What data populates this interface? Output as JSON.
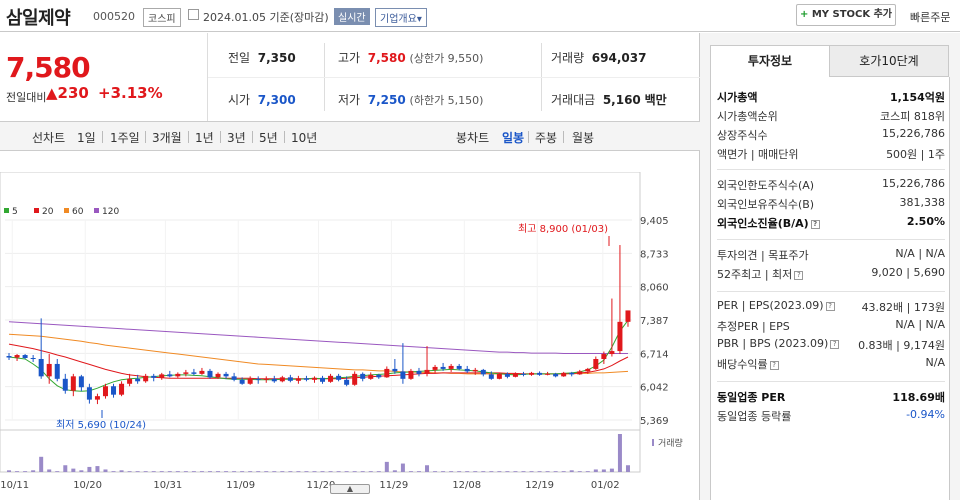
{
  "header": {
    "name": "삼일제약",
    "code": "000520",
    "market": "코스피",
    "date": "2024.01.05 기준(장마감)",
    "realtime": "실시간",
    "company": "기업개요",
    "company_arrow": "▾",
    "mystock_plus": "+",
    "mystock": "MY STOCK 추가",
    "quick": "빠른주문"
  },
  "price": {
    "current": "7,580",
    "label": "전일대비",
    "change": "▲230",
    "pct": "+3.13%"
  },
  "summary": {
    "prev_label": "전일",
    "prev": "7,350",
    "high_label": "고가",
    "high": "7,580",
    "high_limit": "(상한가 9,550)",
    "vol_label": "거래량",
    "vol": "694,037",
    "open_label": "시가",
    "open": "7,300",
    "low_label": "저가",
    "low": "7,250",
    "low_limit": "(하한가 5,150)",
    "amt_label": "거래대금",
    "amt": "5,160",
    "amt_unit": "백만"
  },
  "tabs": {
    "line": "선차트",
    "d1": "1일",
    "w1": "1주일",
    "m3": "3개월",
    "y1": "1년",
    "y3": "3년",
    "y5": "5년",
    "y10": "10년",
    "candle": "봉차트",
    "daily": "일봉",
    "weekly": "주봉",
    "monthly": "월봉"
  },
  "chart_data": {
    "type": "candlestick",
    "legend": [
      "5",
      "20",
      "60",
      "120"
    ],
    "colors": {
      "up": "#e0181c",
      "down": "#1a56c8",
      "ma5": "#32a832",
      "ma20": "#e0181c",
      "ma60": "#f08a24",
      "ma120": "#9a58c0"
    },
    "ylim": [
      5369,
      9405
    ],
    "yticks": [
      "9,405",
      "8,733",
      "8,060",
      "7,387",
      "6,714",
      "6,042",
      "5,369"
    ],
    "xticks": [
      "10/11",
      "10/20",
      "10/31",
      "11/09",
      "11/20",
      "11/29",
      "12/08",
      "12/19",
      "01/02"
    ],
    "high_note": "최고 8,900 (01/03)",
    "low_note": "최저 5,690 (10/24)",
    "volume_label": "거래량",
    "candles": [
      [
        6660,
        6720,
        6580,
        6630
      ],
      [
        6630,
        6700,
        6560,
        6680
      ],
      [
        6680,
        6700,
        6600,
        6620
      ],
      [
        6620,
        6680,
        6540,
        6600
      ],
      [
        6600,
        7420,
        6200,
        6250
      ],
      [
        6250,
        6700,
        6100,
        6500
      ],
      [
        6500,
        6600,
        6150,
        6200
      ],
      [
        6200,
        6300,
        5900,
        5960
      ],
      [
        5960,
        6300,
        5850,
        6250
      ],
      [
        6250,
        6280,
        5950,
        6030
      ],
      [
        6030,
        6100,
        5700,
        5780
      ],
      [
        5780,
        5900,
        5690,
        5850
      ],
      [
        5850,
        6100,
        5800,
        6050
      ],
      [
        6050,
        6100,
        5820,
        5880
      ],
      [
        5880,
        6150,
        5850,
        6100
      ],
      [
        6100,
        6300,
        6050,
        6200
      ],
      [
        6200,
        6280,
        6100,
        6150
      ],
      [
        6150,
        6300,
        6120,
        6260
      ],
      [
        6260,
        6300,
        6150,
        6220
      ],
      [
        6220,
        6320,
        6180,
        6290
      ],
      [
        6290,
        6360,
        6230,
        6250
      ],
      [
        6250,
        6330,
        6220,
        6300
      ],
      [
        6300,
        6380,
        6250,
        6330
      ],
      [
        6330,
        6400,
        6270,
        6300
      ],
      [
        6300,
        6420,
        6280,
        6360
      ],
      [
        6360,
        6400,
        6200,
        6230
      ],
      [
        6230,
        6330,
        6200,
        6300
      ],
      [
        6300,
        6340,
        6200,
        6250
      ],
      [
        6250,
        6320,
        6150,
        6180
      ],
      [
        6180,
        6230,
        6080,
        6100
      ],
      [
        6100,
        6250,
        6080,
        6200
      ],
      [
        6200,
        6250,
        6100,
        6180
      ],
      [
        6180,
        6250,
        6120,
        6200
      ],
      [
        6200,
        6260,
        6120,
        6150
      ],
      [
        6150,
        6260,
        6130,
        6230
      ],
      [
        6230,
        6280,
        6130,
        6160
      ],
      [
        6160,
        6260,
        6100,
        6210
      ],
      [
        6210,
        6260,
        6150,
        6180
      ],
      [
        6180,
        6250,
        6120,
        6220
      ],
      [
        6220,
        6260,
        6100,
        6140
      ],
      [
        6140,
        6300,
        6120,
        6260
      ],
      [
        6260,
        6300,
        6150,
        6180
      ],
      [
        6180,
        6250,
        6050,
        6080
      ],
      [
        6080,
        6350,
        6060,
        6300
      ],
      [
        6300,
        6330,
        6150,
        6200
      ],
      [
        6200,
        6330,
        6180,
        6280
      ],
      [
        6280,
        6300,
        6200,
        6230
      ],
      [
        6230,
        6450,
        6220,
        6400
      ],
      [
        6400,
        6600,
        6300,
        6350
      ],
      [
        6350,
        6920,
        6100,
        6200
      ],
      [
        6200,
        6400,
        6180,
        6360
      ],
      [
        6360,
        6420,
        6250,
        6300
      ],
      [
        6300,
        6860,
        6250,
        6380
      ],
      [
        6380,
        6480,
        6320,
        6440
      ],
      [
        6440,
        6520,
        6360,
        6400
      ],
      [
        6400,
        6500,
        6340,
        6460
      ],
      [
        6460,
        6500,
        6370,
        6400
      ],
      [
        6400,
        6460,
        6320,
        6350
      ],
      [
        6350,
        6420,
        6280,
        6380
      ],
      [
        6380,
        6400,
        6250,
        6290
      ],
      [
        6290,
        6350,
        6180,
        6200
      ],
      [
        6200,
        6320,
        6190,
        6300
      ],
      [
        6300,
        6330,
        6210,
        6240
      ],
      [
        6240,
        6330,
        6230,
        6300
      ],
      [
        6300,
        6340,
        6250,
        6280
      ],
      [
        6280,
        6340,
        6260,
        6320
      ],
      [
        6320,
        6350,
        6260,
        6280
      ],
      [
        6280,
        6340,
        6270,
        6300
      ],
      [
        6300,
        6320,
        6230,
        6250
      ],
      [
        6250,
        6340,
        6240,
        6320
      ],
      [
        6320,
        6340,
        6250,
        6290
      ],
      [
        6290,
        6380,
        6280,
        6350
      ],
      [
        6350,
        6420,
        6300,
        6400
      ],
      [
        6400,
        6650,
        6380,
        6600
      ],
      [
        6600,
        6750,
        6500,
        6700
      ],
      [
        6700,
        7820,
        6650,
        6760
      ],
      [
        6760,
        8900,
        6700,
        7350
      ],
      [
        7350,
        7580,
        7250,
        7580
      ]
    ],
    "ma5": [
      6640,
      6620,
      6600,
      6500,
      6380,
      6200,
      6060,
      5980,
      5960,
      5950,
      5960,
      6010,
      6080,
      6140,
      6180,
      6200,
      6210,
      6230,
      6240,
      6260,
      6270,
      6280,
      6280,
      6270,
      6260,
      6240,
      6220,
      6200,
      6190,
      6190,
      6190,
      6180,
      6180,
      6180,
      6190,
      6190,
      6190,
      6200,
      6210,
      6200,
      6210,
      6220,
      6230,
      6250,
      6260,
      6280,
      6290,
      6300,
      6320,
      6330,
      6340,
      6350,
      6360,
      6370,
      6380,
      6390,
      6380,
      6370,
      6360,
      6340,
      6320,
      6300,
      6290,
      6280,
      6290,
      6300,
      6300,
      6300,
      6300,
      6310,
      6320,
      6340,
      6380,
      6460,
      6580,
      6840,
      7160,
      7380
    ],
    "ma20": [
      6900,
      6870,
      6840,
      6810,
      6770,
      6730,
      6680,
      6640,
      6590,
      6540,
      6490,
      6440,
      6390,
      6350,
      6310,
      6280,
      6260,
      6240,
      6230,
      6220,
      6210,
      6210,
      6210,
      6210,
      6210,
      6210,
      6210,
      6210,
      6210,
      6210,
      6210,
      6200,
      6200,
      6200,
      6200,
      6200,
      6200,
      6200,
      6200,
      6200,
      6200,
      6200,
      6210,
      6220,
      6230,
      6240,
      6250,
      6260,
      6270,
      6280,
      6290,
      6300,
      6310,
      6310,
      6320,
      6320,
      6320,
      6320,
      6320,
      6320,
      6320,
      6320,
      6310,
      6310,
      6300,
      6300,
      6300,
      6300,
      6300,
      6300,
      6310,
      6320,
      6330,
      6360,
      6400,
      6470,
      6560,
      6640
    ],
    "ma60": [
      7100,
      7090,
      7080,
      7070,
      7060,
      7040,
      7020,
      7000,
      6980,
      6960,
      6930,
      6910,
      6880,
      6860,
      6840,
      6820,
      6800,
      6780,
      6760,
      6740,
      6720,
      6700,
      6680,
      6660,
      6640,
      6620,
      6600,
      6580,
      6560,
      6540,
      6520,
      6500,
      6490,
      6480,
      6470,
      6460,
      6450,
      6440,
      6430,
      6420,
      6410,
      6400,
      6390,
      6380,
      6380,
      6370,
      6360,
      6360,
      6350,
      6340,
      6340,
      6330,
      6330,
      6320,
      6320,
      6310,
      6310,
      6300,
      6300,
      6300,
      6300,
      6300,
      6300,
      6300,
      6300,
      6300,
      6300,
      6300,
      6300,
      6300,
      6300,
      6310,
      6310,
      6320,
      6320,
      6330,
      6340,
      6350
    ],
    "ma120": [
      7350,
      7340,
      7330,
      7320,
      7310,
      7300,
      7290,
      7280,
      7270,
      7260,
      7250,
      7240,
      7230,
      7220,
      7210,
      7200,
      7190,
      7180,
      7170,
      7160,
      7150,
      7140,
      7130,
      7120,
      7110,
      7100,
      7090,
      7080,
      7070,
      7060,
      7050,
      7040,
      7030,
      7020,
      7010,
      7000,
      6990,
      6980,
      6970,
      6960,
      6950,
      6940,
      6930,
      6920,
      6910,
      6900,
      6890,
      6880,
      6870,
      6860,
      6850,
      6840,
      6830,
      6820,
      6810,
      6800,
      6790,
      6780,
      6770,
      6760,
      6750,
      6740,
      6740,
      6730,
      6730,
      6720,
      6720,
      6720,
      6720,
      6710,
      6710,
      6710,
      6710,
      6710,
      6710,
      6710,
      6710,
      6710
    ],
    "volumes": [
      2,
      1,
      1,
      2,
      18,
      3,
      1,
      8,
      4,
      2,
      6,
      7,
      3,
      1,
      2,
      1,
      1,
      1,
      1,
      1,
      1,
      1,
      1,
      1,
      1,
      1,
      1,
      1,
      1,
      1,
      1,
      1,
      1,
      1,
      1,
      1,
      1,
      1,
      1,
      1,
      1,
      1,
      1,
      1,
      1,
      1,
      1,
      12,
      2,
      10,
      1,
      1,
      8,
      1,
      1,
      1,
      1,
      1,
      1,
      1,
      1,
      1,
      1,
      1,
      1,
      1,
      1,
      1,
      1,
      1,
      2,
      1,
      1,
      3,
      3,
      4,
      45,
      8
    ]
  },
  "right": {
    "tab1": "투자정보",
    "tab2": "호가10단계",
    "rows": [
      {
        "k": "시가총액",
        "v": "1,154억원"
      },
      {
        "k": "시가총액순위",
        "v": "코스피 818위"
      },
      {
        "k": "상장주식수",
        "v": "15,226,786"
      },
      {
        "k": "액면가 | 매매단위",
        "v": "500원 | 1주"
      },
      {
        "k": "외국인한도주식수(A)",
        "v": "15,226,786"
      },
      {
        "k": "외국인보유주식수(B)",
        "v": "381,338"
      },
      {
        "k": "외국인소진율(B/A)",
        "v": "2.50%"
      },
      {
        "k": "투자의견 | 목표주가",
        "v": "N/A | N/A"
      },
      {
        "k": "52주최고 | 최저",
        "v": "9,020 | 5,690"
      },
      {
        "k": "PER | EPS(2023.09)",
        "v": "43.82배 | 173원"
      },
      {
        "k": "추정PER | EPS",
        "v": "N/A | N/A"
      },
      {
        "k": "PBR | BPS (2023.09)",
        "v": "0.83배 | 9,174원"
      },
      {
        "k": "배당수익률",
        "v": "N/A"
      },
      {
        "k": "동일업종 PER",
        "v": "118.69배"
      },
      {
        "k": "동일업종 등락률",
        "v": "-0.94%"
      }
    ]
  },
  "handle": "▲"
}
